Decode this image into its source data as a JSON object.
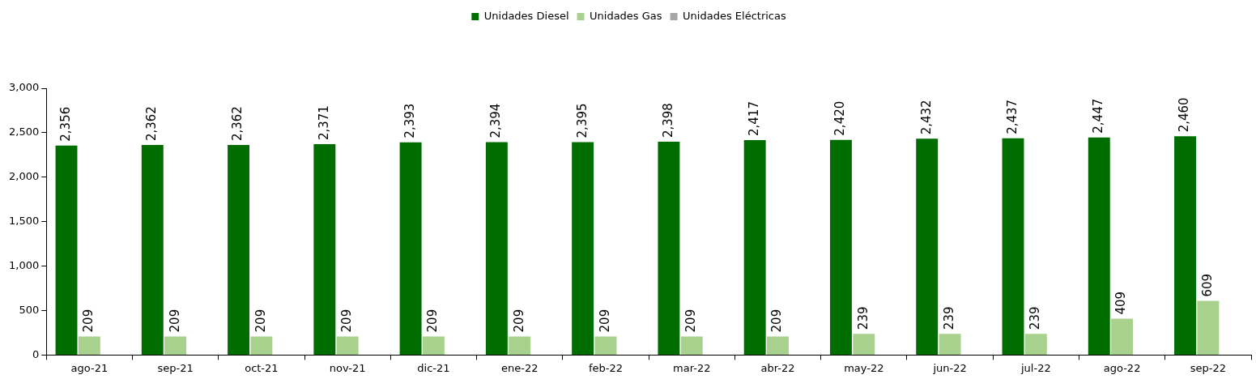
{
  "chart_data": {
    "type": "bar",
    "categories": [
      "ago-21",
      "sep-21",
      "oct-21",
      "nov-21",
      "dic-21",
      "ene-22",
      "feb-22",
      "mar-22",
      "abr-22",
      "may-22",
      "jun-22",
      "jul-22",
      "ago-22",
      "sep-22"
    ],
    "series": [
      {
        "name": "Unidades Diesel",
        "color": "#006d00",
        "values": [
          2356,
          2362,
          2362,
          2371,
          2393,
          2394,
          2395,
          2398,
          2417,
          2420,
          2432,
          2437,
          2447,
          2460
        ],
        "value_labels": [
          "2,356",
          "2,362",
          "2,362",
          "2,371",
          "2,393",
          "2,394",
          "2,395",
          "2,398",
          "2,417",
          "2,420",
          "2,432",
          "2,437",
          "2,447",
          "2,460"
        ]
      },
      {
        "name": "Unidades Gas",
        "color": "#a9d18e",
        "values": [
          209,
          209,
          209,
          209,
          209,
          209,
          209,
          209,
          209,
          239,
          239,
          239,
          409,
          609
        ],
        "value_labels": [
          "209",
          "209",
          "209",
          "209",
          "209",
          "209",
          "209",
          "209",
          "209",
          "239",
          "239",
          "239",
          "409",
          "609"
        ]
      },
      {
        "name": "Unidades Eléctricas",
        "color": "#a6a6a6",
        "values": [
          null,
          null,
          null,
          null,
          null,
          null,
          null,
          null,
          null,
          null,
          null,
          null,
          null,
          null
        ]
      }
    ],
    "ylim": [
      0,
      3000
    ],
    "yticks": [
      {
        "value": 0,
        "label": "0"
      },
      {
        "value": 500,
        "label": "500"
      },
      {
        "value": 1000,
        "label": "1,000"
      },
      {
        "value": 1500,
        "label": "1,500"
      },
      {
        "value": 2000,
        "label": "2,000"
      },
      {
        "value": 2500,
        "label": "2,500"
      },
      {
        "value": 3000,
        "label": "3,000"
      }
    ],
    "grid": false,
    "legend": "top"
  }
}
